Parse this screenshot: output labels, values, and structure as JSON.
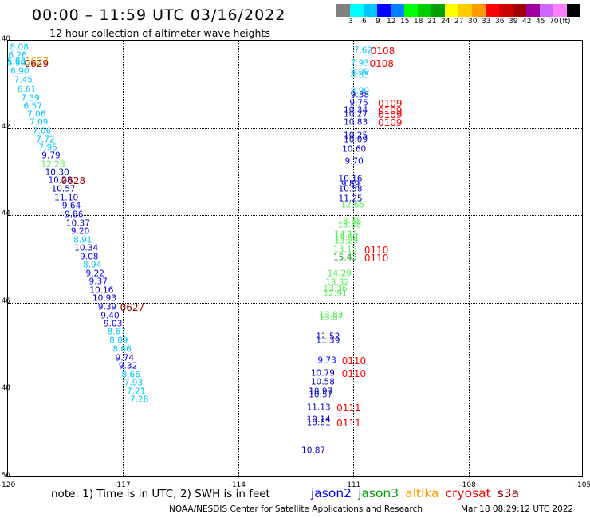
{
  "header": {
    "title": "00:00 – 11:59 UTC 03/16/2022",
    "subtitle": "12 hour collection of altimeter wave heights"
  },
  "legend": {
    "unit": "(ft)",
    "colors": [
      "#808080",
      "#00ffff",
      "#00c8ff",
      "#0000ff",
      "#0080ff",
      "#00ff00",
      "#00cc00",
      "#00a000",
      "#ffff00",
      "#ffcc00",
      "#ff9900",
      "#ff0000",
      "#cc0000",
      "#a00000",
      "#a000a0",
      "#cc66ff",
      "#ff80ff",
      "#000000"
    ],
    "labels": [
      "3",
      "6",
      "9",
      "12",
      "15",
      "18",
      "21",
      "24",
      "27",
      "30",
      "33",
      "36",
      "39",
      "42",
      "45",
      "70"
    ]
  },
  "map": {
    "lon_range": [
      -120,
      -105
    ],
    "lat_range": [
      40,
      50
    ],
    "x_ticks": [
      "-120",
      "-117",
      "-114",
      "-111",
      "-108",
      "-105"
    ],
    "y_ticks": [
      "40",
      "42",
      "44",
      "46",
      "48",
      "50"
    ],
    "observations": [
      {
        "v": "8.08",
        "lon": -119.705,
        "lat": 40.167,
        "c": "#00c8ff"
      },
      {
        "v": "6.26",
        "lon": -119.75,
        "lat": 40.349,
        "c": "#00c8ff"
      },
      {
        "v": "5.93",
        "lon": -119.784,
        "lat": 40.485,
        "c": "#00c8ff"
      },
      {
        "v": "5.99",
        "lon": -119.784,
        "lat": 40.53,
        "c": "#00c8ff"
      },
      {
        "v": "6.90",
        "lon": -119.692,
        "lat": 40.713,
        "c": "#00c8ff"
      },
      {
        "v": "7.45",
        "lon": -119.599,
        "lat": 40.912,
        "c": "#00c8ff"
      },
      {
        "v": "6.61",
        "lon": -119.51,
        "lat": 41.128,
        "c": "#00c8ff"
      },
      {
        "v": "7.39",
        "lon": -119.417,
        "lat": 41.332,
        "c": "#00c8ff"
      },
      {
        "v": "6.57",
        "lon": -119.351,
        "lat": 41.514,
        "c": "#00c8ff"
      },
      {
        "v": "7.06",
        "lon": -119.258,
        "lat": 41.697,
        "c": "#00c8ff"
      },
      {
        "v": "7.09",
        "lon": -119.197,
        "lat": 41.879,
        "c": "#00c8ff"
      },
      {
        "v": "7.06",
        "lon": -119.116,
        "lat": 42.08,
        "c": "#00c8ff"
      },
      {
        "v": "7.72",
        "lon": -119.024,
        "lat": 42.281,
        "c": "#00c8ff"
      },
      {
        "v": "7.95",
        "lon": -118.956,
        "lat": 42.464,
        "c": "#00c8ff"
      },
      {
        "v": "9.79",
        "lon": -118.878,
        "lat": 42.646,
        "c": "#0000ff"
      },
      {
        "v": "12.28",
        "lon": -118.826,
        "lat": 42.847,
        "c": "#55ee55"
      },
      {
        "v": "10.30",
        "lon": -118.719,
        "lat": 43.029,
        "c": "#0000cc"
      },
      {
        "v": "10.28",
        "lon": -118.639,
        "lat": 43.212,
        "c": "#0000cc"
      },
      {
        "v": "10.57",
        "lon": -118.555,
        "lat": 43.413,
        "c": "#0000cc"
      },
      {
        "v": "11.10",
        "lon": -118.479,
        "lat": 43.613,
        "c": "#0000cc"
      },
      {
        "v": "9.64",
        "lon": -118.346,
        "lat": 43.796,
        "c": "#0000ff"
      },
      {
        "v": "9.86",
        "lon": -118.281,
        "lat": 43.996,
        "c": "#0000ff"
      },
      {
        "v": "10.37",
        "lon": -118.174,
        "lat": 44.197,
        "c": "#0000cc"
      },
      {
        "v": "9.20",
        "lon": -118.118,
        "lat": 44.38,
        "c": "#0000ff"
      },
      {
        "v": "8.91",
        "lon": -118.051,
        "lat": 44.58,
        "c": "#00c8ff"
      },
      {
        "v": "10.34",
        "lon": -117.96,
        "lat": 44.763,
        "c": "#0000cc"
      },
      {
        "v": "9.08",
        "lon": -117.885,
        "lat": 44.964,
        "c": "#0000ff"
      },
      {
        "v": "8.94",
        "lon": -117.803,
        "lat": 45.146,
        "c": "#00c8ff"
      },
      {
        "v": "9.22",
        "lon": -117.73,
        "lat": 45.347,
        "c": "#0000ff"
      },
      {
        "v": "9.37",
        "lon": -117.647,
        "lat": 45.529,
        "c": "#0000ff"
      },
      {
        "v": "10.16",
        "lon": -117.562,
        "lat": 45.73,
        "c": "#0000cc"
      },
      {
        "v": "10.93",
        "lon": -117.486,
        "lat": 45.912,
        "c": "#0000cc"
      },
      {
        "v": "9.39",
        "lon": -117.413,
        "lat": 46.113,
        "c": "#0000ff"
      },
      {
        "v": "9.40",
        "lon": -117.342,
        "lat": 46.314,
        "c": "#0000ff"
      },
      {
        "v": "9.03",
        "lon": -117.264,
        "lat": 46.496,
        "c": "#0000ff"
      },
      {
        "v": "8.67",
        "lon": -117.169,
        "lat": 46.679,
        "c": "#00c8ff"
      },
      {
        "v": "8.09",
        "lon": -117.117,
        "lat": 46.88,
        "c": "#00c8ff"
      },
      {
        "v": "8.66",
        "lon": -117.027,
        "lat": 47.08,
        "c": "#00c8ff"
      },
      {
        "v": "9.74",
        "lon": -116.959,
        "lat": 47.281,
        "c": "#0000ff"
      },
      {
        "v": "9.32",
        "lon": -116.871,
        "lat": 47.464,
        "c": "#0000ff"
      },
      {
        "v": "8.66",
        "lon": -116.796,
        "lat": 47.664,
        "c": "#00c8ff"
      },
      {
        "v": "7.93",
        "lon": -116.728,
        "lat": 47.847,
        "c": "#00c8ff"
      },
      {
        "v": "7.21",
        "lon": -116.66,
        "lat": 48.047,
        "c": "#00c8ff"
      },
      {
        "v": "7.28",
        "lon": -116.578,
        "lat": 48.23,
        "c": "#00c8ff"
      },
      {
        "v": "7.62",
        "lon": -110.748,
        "lat": 40.23,
        "c": "#00c8ff"
      },
      {
        "v": "7.93",
        "lon": -110.83,
        "lat": 40.522,
        "c": "#00c8ff"
      },
      {
        "v": "8.09",
        "lon": -110.83,
        "lat": 40.723,
        "c": "#00c8ff"
      },
      {
        "v": "8.85",
        "lon": -110.83,
        "lat": 40.796,
        "c": "#00c8ff"
      },
      {
        "v": "8.90",
        "lon": -110.83,
        "lat": 41.161,
        "c": "#00c8ff"
      },
      {
        "v": "9.38",
        "lon": -110.83,
        "lat": 41.252,
        "c": "#0000ff"
      },
      {
        "v": "9.75",
        "lon": -110.857,
        "lat": 41.434,
        "c": "#0000ff"
      },
      {
        "v": "10.34",
        "lon": -110.939,
        "lat": 41.599,
        "c": "#0000cc"
      },
      {
        "v": "10.27",
        "lon": -110.939,
        "lat": 41.69,
        "c": "#0000cc"
      },
      {
        "v": "10.83",
        "lon": -110.939,
        "lat": 41.872,
        "c": "#0000cc"
      },
      {
        "v": "10.25",
        "lon": -110.939,
        "lat": 42.191,
        "c": "#0000cc"
      },
      {
        "v": "10.09",
        "lon": -110.939,
        "lat": 42.273,
        "c": "#0000cc"
      },
      {
        "v": "10.60",
        "lon": -110.98,
        "lat": 42.5,
        "c": "#0000cc"
      },
      {
        "v": "9.70",
        "lon": -110.98,
        "lat": 42.774,
        "c": "#0000ff"
      },
      {
        "v": "10.16",
        "lon": -111.075,
        "lat": 43.175,
        "c": "#0000cc"
      },
      {
        "v": "9.89",
        "lon": -111.075,
        "lat": 43.303,
        "c": "#0000ff"
      },
      {
        "v": "10.58",
        "lon": -111.075,
        "lat": 43.412,
        "c": "#0000cc"
      },
      {
        "v": "11.25",
        "lon": -111.075,
        "lat": 43.631,
        "c": "#0000cc"
      },
      {
        "v": "12.65",
        "lon": -111.021,
        "lat": 43.777,
        "c": "#55ee55"
      },
      {
        "v": "13.38",
        "lon": -111.102,
        "lat": 44.142,
        "c": "#55ee55"
      },
      {
        "v": "13.38",
        "lon": -111.102,
        "lat": 44.233,
        "c": "#55ee55"
      },
      {
        "v": "14.15",
        "lon": -111.184,
        "lat": 44.452,
        "c": "#55ee55"
      },
      {
        "v": "14.02",
        "lon": -111.184,
        "lat": 44.525,
        "c": "#55ee55"
      },
      {
        "v": "13.29",
        "lon": -111.184,
        "lat": 44.598,
        "c": "#55ee55"
      },
      {
        "v": "13.13",
        "lon": -111.211,
        "lat": 44.799,
        "c": "#55ee55"
      },
      {
        "v": "15.43",
        "lon": -111.211,
        "lat": 44.981,
        "c": "#00a000"
      },
      {
        "v": "14.29",
        "lon": -111.361,
        "lat": 45.346,
        "c": "#55ee55"
      },
      {
        "v": "13.32",
        "lon": -111.415,
        "lat": 45.547,
        "c": "#55ee55"
      },
      {
        "v": "13.36",
        "lon": -111.47,
        "lat": 45.693,
        "c": "#55ee55"
      },
      {
        "v": "12.91",
        "lon": -111.47,
        "lat": 45.802,
        "c": "#55ee55"
      },
      {
        "v": "13.83",
        "lon": -111.579,
        "lat": 46.295,
        "c": "#55ee55"
      },
      {
        "v": "13.87",
        "lon": -111.579,
        "lat": 46.35,
        "c": "#55ee55"
      },
      {
        "v": "11.52",
        "lon": -111.661,
        "lat": 46.788,
        "c": "#0000cc"
      },
      {
        "v": "11.39",
        "lon": -111.661,
        "lat": 46.879,
        "c": "#0000cc"
      },
      {
        "v": "9.73",
        "lon": -111.688,
        "lat": 47.335,
        "c": "#0000ff"
      },
      {
        "v": "10.79",
        "lon": -111.796,
        "lat": 47.627,
        "c": "#0000cc"
      },
      {
        "v": "10.58",
        "lon": -111.796,
        "lat": 47.828,
        "c": "#0000cc"
      },
      {
        "v": "10.97",
        "lon": -111.851,
        "lat": 48.047,
        "c": "#0000cc"
      },
      {
        "v": "10.57",
        "lon": -111.851,
        "lat": 48.12,
        "c": "#0000cc"
      },
      {
        "v": "11.13",
        "lon": -111.905,
        "lat": 48.412,
        "c": "#0000cc"
      },
      {
        "v": "10.14",
        "lon": -111.905,
        "lat": 48.686,
        "c": "#0000cc"
      },
      {
        "v": "10.61",
        "lon": -111.905,
        "lat": 48.759,
        "c": "#0000cc"
      },
      {
        "v": "10.87",
        "lon": -112.041,
        "lat": 49.398,
        "c": "#0000cc"
      }
    ],
    "time_labels": [
      {
        "t": "0627",
        "lon": -119.255,
        "lat": 40.479,
        "c": "#d8b000"
      },
      {
        "t": "0629",
        "lon": -119.255,
        "lat": 40.53,
        "c": "#a00000"
      },
      {
        "t": "0628",
        "lon": -118.298,
        "lat": 43.212,
        "c": "#a00000"
      },
      {
        "t": "0627",
        "lon": -116.762,
        "lat": 46.113,
        "c": "#a00000"
      },
      {
        "t": "0108",
        "lon": -110.234,
        "lat": 40.23,
        "c": "#ff0000"
      },
      {
        "t": "0108",
        "lon": -110.262,
        "lat": 40.522,
        "c": "#ff0000"
      },
      {
        "t": "0109",
        "lon": -110.043,
        "lat": 41.434,
        "c": "#ff0000"
      },
      {
        "t": "0109",
        "lon": -110.043,
        "lat": 41.599,
        "c": "#ff0000"
      },
      {
        "t": "0109",
        "lon": -110.043,
        "lat": 41.69,
        "c": "#ff0000"
      },
      {
        "t": "0109",
        "lon": -110.043,
        "lat": 41.872,
        "c": "#ff0000"
      },
      {
        "t": "0110",
        "lon": -110.398,
        "lat": 44.799,
        "c": "#ff0000"
      },
      {
        "t": "0110",
        "lon": -110.398,
        "lat": 44.981,
        "c": "#ff0000"
      },
      {
        "t": "0110",
        "lon": -110.985,
        "lat": 47.335,
        "c": "#ff0000"
      },
      {
        "t": "0110",
        "lon": -110.985,
        "lat": 47.627,
        "c": "#ff0000"
      },
      {
        "t": "0111",
        "lon": -111.12,
        "lat": 48.412,
        "c": "#ff0000"
      },
      {
        "t": "0111",
        "lon": -111.12,
        "lat": 48.759,
        "c": "#ff0000"
      }
    ]
  },
  "footer": {
    "note": "note: 1) Time is in UTC; 2) SWH is in feet",
    "satellites": [
      {
        "name": "jason2",
        "color": "#0000ff"
      },
      {
        "name": "jason3",
        "color": "#00a000"
      },
      {
        "name": "altika",
        "color": "#ff9900"
      },
      {
        "name": "cryosat",
        "color": "#ff0000"
      },
      {
        "name": "s3a",
        "color": "#a00000"
      }
    ],
    "credit": "NOAA/NESDIS Center for Satellite Applications and Research",
    "timestamp": "Mar 18 08:29:12 UTC 2022"
  }
}
